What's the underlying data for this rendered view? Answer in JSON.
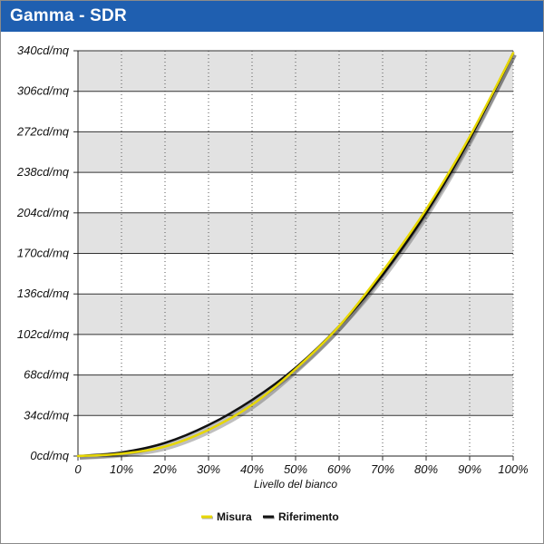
{
  "window": {
    "title": "Gamma - SDR"
  },
  "chart_data": {
    "type": "line",
    "title": "Gamma - SDR",
    "xlabel": "Livello del bianco",
    "ylabel": "",
    "x_tick_labels": [
      "0",
      "10%",
      "20%",
      "30%",
      "40%",
      "50%",
      "60%",
      "70%",
      "80%",
      "90%",
      "100%"
    ],
    "y_tick_labels": [
      "0cd/mq",
      "34cd/mq",
      "68cd/mq",
      "102cd/mq",
      "136cd/mq",
      "170cd/mq",
      "204cd/mq",
      "238cd/mq",
      "272cd/mq",
      "306cd/mq",
      "340cd/mq"
    ],
    "xlim": [
      0,
      100
    ],
    "ylim": [
      0,
      340
    ],
    "x": [
      0,
      10,
      20,
      30,
      40,
      50,
      60,
      70,
      80,
      90,
      100
    ],
    "series": [
      {
        "name": "Misura",
        "color": "#e8d800",
        "values": [
          0,
          2,
          8,
          22,
          43,
          73,
          109,
          155,
          207,
          268,
          338
        ]
      },
      {
        "name": "Riferimento",
        "color": "#111111",
        "values": [
          0,
          3,
          11,
          26,
          47,
          74,
          109,
          152,
          204,
          266,
          338
        ]
      }
    ],
    "grid": {
      "horizontal": true,
      "vertical_dotted": true,
      "alternating_bands": true,
      "band_color": "#e2e2e2"
    },
    "legend": {
      "position": "bottom-center"
    }
  }
}
